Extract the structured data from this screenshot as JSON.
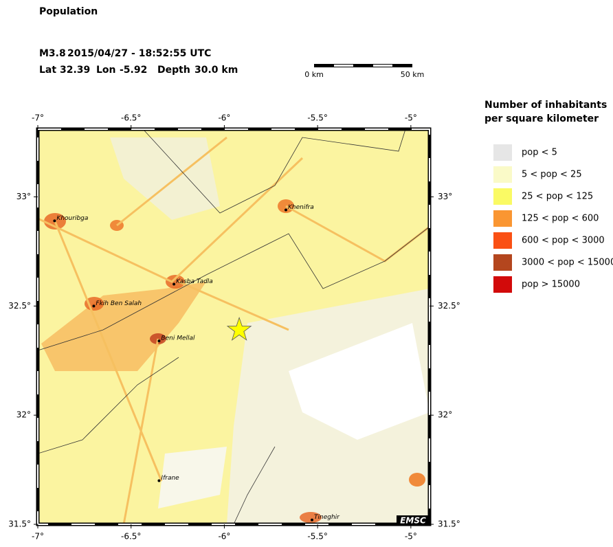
{
  "map": {
    "title": "Population",
    "event": {
      "magnitude": "M3.8",
      "datetime": "2015/04/27 - 18:52:55 UTC",
      "lat_label": "Lat",
      "lat": 32.39,
      "lon_label": "Lon",
      "lon": -5.92,
      "depth_label": "Depth",
      "depth": "30.0 km"
    },
    "scale_bar": {
      "start": "0 km",
      "end": "50 km"
    },
    "xlim": [
      -7,
      -4.9
    ],
    "ylim": [
      31.5,
      33.31
    ],
    "lon_ticks": [
      {
        "value": -7,
        "label": "-7°"
      },
      {
        "value": -6.5,
        "label": "-6.5°"
      },
      {
        "value": -6,
        "label": "-6°"
      },
      {
        "value": -5.5,
        "label": "-5.5°"
      },
      {
        "value": -5,
        "label": "-5°"
      }
    ],
    "lat_ticks": [
      {
        "value": 31.5,
        "label": "31.5°"
      },
      {
        "value": 32,
        "label": "32°"
      },
      {
        "value": 32.5,
        "label": "32.5°"
      },
      {
        "value": 33,
        "label": "33°"
      }
    ],
    "cities": [
      {
        "name": "Khouribga",
        "lon": -6.91,
        "lat": 32.89
      },
      {
        "name": "Khenifra",
        "lon": -5.67,
        "lat": 32.94
      },
      {
        "name": "Kasba Tadla",
        "lon": -6.27,
        "lat": 32.6
      },
      {
        "name": "Fkih Ben Salah",
        "lon": -6.7,
        "lat": 32.5
      },
      {
        "name": "Beni Mellal",
        "lon": -6.35,
        "lat": 32.34
      },
      {
        "name": "Ifrane",
        "lon": -6.35,
        "lat": 31.7
      },
      {
        "name": "Tineghir",
        "lon": -5.53,
        "lat": 31.52
      }
    ],
    "logo": "EMSC",
    "legend": {
      "title_line1": "Number of inhabitants",
      "title_line2": "per square kilometer",
      "items": [
        {
          "label": "pop < 5",
          "color": "#e6e6e6"
        },
        {
          "label": "5 < pop < 25",
          "color": "#fafac8"
        },
        {
          "label": "25 < pop < 125",
          "color": "#fafa64"
        },
        {
          "label": "125 < pop < 600",
          "color": "#fa9632"
        },
        {
          "label": "600 < pop < 3000",
          "color": "#fa5014"
        },
        {
          "label": "3000 < pop < 15000",
          "color": "#b4461e"
        },
        {
          "label": "pop > 15000",
          "color": "#d20a0a"
        }
      ]
    }
  }
}
